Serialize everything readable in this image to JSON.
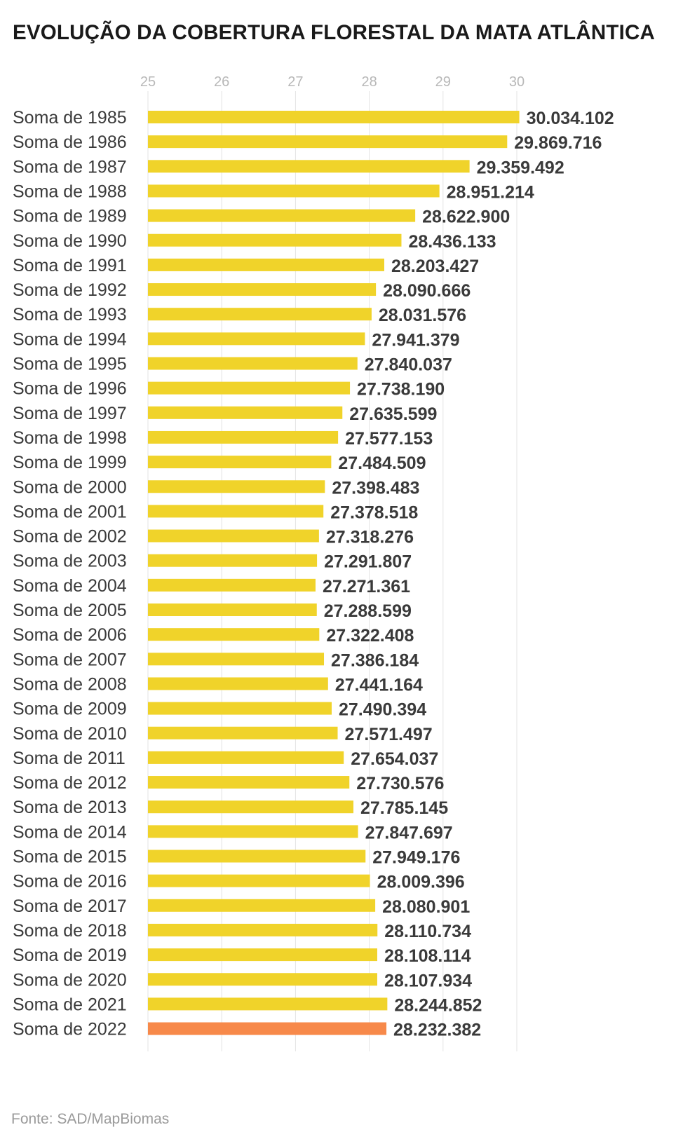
{
  "chart_data": {
    "type": "bar",
    "orientation": "horizontal",
    "title": "EVOLUÇÃO DA COBERTURA FLORESTAL DA MATA ATLÂNTICA",
    "source": "Fonte: SAD/MapBiomas",
    "unit_scale": 1000000,
    "xlim": [
      25,
      30
    ],
    "xticks": [
      25,
      26,
      27,
      28,
      29,
      30
    ],
    "grid": true,
    "bar_color": "#f0d32a",
    "highlight_color": "#f7894a",
    "highlight_index": 37,
    "categories": [
      "Soma de 1985",
      "Soma de 1986",
      "Soma de 1987",
      "Soma de 1988",
      "Soma de 1989",
      "Soma de 1990",
      "Soma de 1991",
      "Soma de 1992",
      "Soma de 1993",
      "Soma de 1994",
      "Soma de 1995",
      "Soma de 1996",
      "Soma de 1997",
      "Soma de 1998",
      "Soma de 1999",
      "Soma de 2000",
      "Soma de 2001",
      "Soma de 2002",
      "Soma de 2003",
      "Soma de 2004",
      "Soma de 2005",
      "Soma de 2006",
      "Soma de 2007",
      "Soma de 2008",
      "Soma de 2009",
      "Soma de 2010",
      "Soma de 2011",
      "Soma de 2012",
      "Soma de 2013",
      "Soma de 2014",
      "Soma de 2015",
      "Soma de 2016",
      "Soma de 2017",
      "Soma de 2018",
      "Soma de 2019",
      "Soma de 2020",
      "Soma de 2021",
      "Soma de 2022"
    ],
    "values": [
      30034102,
      29869716,
      29359492,
      28951214,
      28622900,
      28436133,
      28203427,
      28090666,
      28031576,
      27941379,
      27840037,
      27738190,
      27635599,
      27577153,
      27484509,
      27398483,
      27378518,
      27318276,
      27291807,
      27271361,
      27288599,
      27322408,
      27386184,
      27441164,
      27490394,
      27571497,
      27654037,
      27730576,
      27785145,
      27847697,
      27949176,
      28009396,
      28080901,
      28110734,
      28108114,
      28107934,
      28244852,
      28232382
    ],
    "value_labels": [
      "30.034.102",
      "29.869.716",
      "29.359.492",
      "28.951.214",
      "28.622.900",
      "28.436.133",
      "28.203.427",
      "28.090.666",
      "28.031.576",
      "27.941.379",
      "27.840.037",
      "27.738.190",
      "27.635.599",
      "27.577.153",
      "27.484.509",
      "27.398.483",
      "27.378.518",
      "27.318.276",
      "27.291.807",
      "27.271.361",
      "27.288.599",
      "27.322.408",
      "27.386.184",
      "27.441.164",
      "27.490.394",
      "27.571.497",
      "27.654.037",
      "27.730.576",
      "27.785.145",
      "27.847.697",
      "27.949.176",
      "28.009.396",
      "28.080.901",
      "28.110.734",
      "28.108.114",
      "28.107.934",
      "28.244.852",
      "28.232.382"
    ]
  }
}
